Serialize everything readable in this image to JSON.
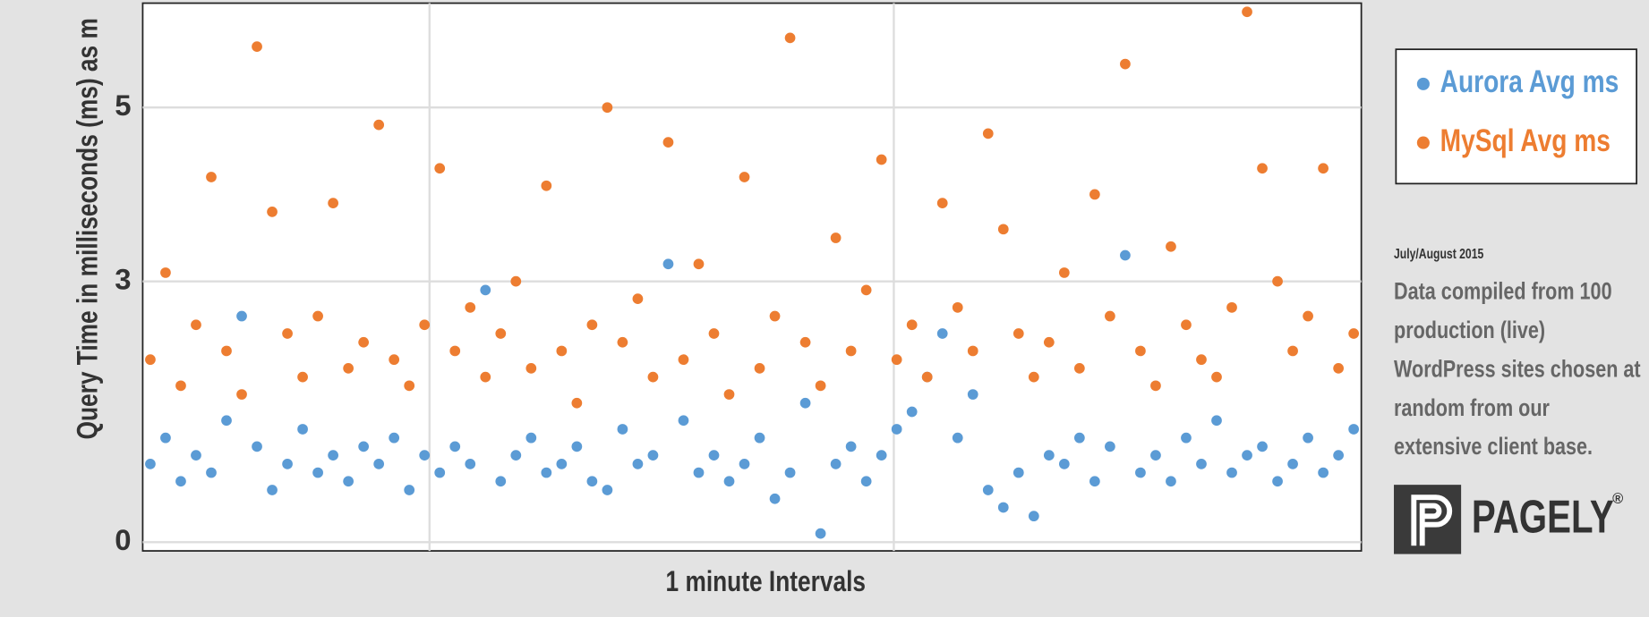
{
  "chart_data": {
    "type": "scatter",
    "y_label": "Query Time in milliseconds (ms) as m",
    "x_label": "1 minute Intervals",
    "ylim": [
      -0.1,
      6.2
    ],
    "yticks": [
      0,
      3,
      5
    ],
    "xlim": [
      -5,
      795
    ],
    "grid": true,
    "legend": "right",
    "x": [
      0,
      10,
      20,
      30,
      40,
      50,
      60,
      70,
      80,
      90,
      100,
      110,
      120,
      130,
      140,
      150,
      160,
      170,
      180,
      190,
      200,
      210,
      220,
      230,
      240,
      250,
      260,
      270,
      280,
      290,
      300,
      310,
      320,
      330,
      340,
      350,
      360,
      370,
      380,
      390,
      400,
      410,
      420,
      430,
      440,
      450,
      460,
      470,
      480,
      490,
      500,
      510,
      520,
      530,
      540,
      550,
      560,
      570,
      580,
      590,
      600,
      610,
      620,
      630,
      640,
      650,
      660,
      670,
      680,
      690,
      700,
      710,
      720,
      730,
      740,
      750,
      760,
      770,
      780,
      790
    ],
    "series": [
      {
        "name": "Aurora Avg ms",
        "color": "#5b9bd5",
        "values": [
          0.9,
          1.2,
          0.7,
          1.0,
          0.8,
          1.4,
          2.6,
          1.1,
          0.6,
          0.9,
          1.3,
          0.8,
          1.0,
          0.7,
          1.1,
          0.9,
          1.2,
          0.6,
          1.0,
          0.8,
          1.1,
          0.9,
          2.9,
          0.7,
          1.0,
          1.2,
          0.8,
          0.9,
          1.1,
          0.7,
          0.6,
          1.3,
          0.9,
          1.0,
          3.2,
          1.4,
          0.8,
          1.0,
          0.7,
          0.9,
          1.2,
          0.5,
          0.8,
          1.6,
          0.1,
          0.9,
          1.1,
          0.7,
          1.0,
          1.3,
          1.5,
          1.9,
          2.4,
          1.2,
          1.7,
          0.6,
          0.4,
          0.8,
          0.3,
          1.0,
          0.9,
          1.2,
          0.7,
          1.1,
          3.3,
          0.8,
          1.0,
          0.7,
          1.2,
          0.9,
          1.4,
          0.8,
          1.0,
          1.1,
          0.7,
          0.9,
          1.2,
          0.8,
          1.0,
          1.3
        ]
      },
      {
        "name": "MySql Avg ms",
        "color": "#ed7d31",
        "values": [
          2.1,
          3.1,
          1.8,
          2.5,
          4.2,
          2.2,
          1.7,
          5.7,
          3.8,
          2.4,
          1.9,
          2.6,
          3.9,
          2.0,
          2.3,
          4.8,
          2.1,
          1.8,
          2.5,
          4.3,
          2.2,
          2.7,
          1.9,
          2.4,
          3.0,
          2.0,
          4.1,
          2.2,
          1.6,
          2.5,
          5.0,
          2.3,
          2.8,
          1.9,
          4.6,
          2.1,
          3.2,
          2.4,
          1.7,
          4.2,
          2.0,
          2.6,
          5.8,
          2.3,
          1.8,
          3.5,
          2.2,
          2.9,
          4.4,
          2.1,
          2.5,
          1.9,
          3.9,
          2.7,
          2.2,
          4.7,
          3.6,
          2.4,
          1.9,
          2.3,
          3.1,
          2.0,
          4.0,
          2.6,
          5.5,
          2.2,
          1.8,
          3.4,
          2.5,
          2.1,
          1.9,
          2.7,
          6.1,
          4.3,
          3.0,
          2.2,
          2.6,
          4.3,
          2.0,
          2.4
        ]
      }
    ],
    "date_note": "July/August 2015",
    "description_lines": [
      "Data compiled from 100",
      "production (live)",
      "WordPress sites chosen at",
      "random from our",
      "extensive client base."
    ],
    "brand": "PAGELY",
    "brand_mark": "®"
  }
}
